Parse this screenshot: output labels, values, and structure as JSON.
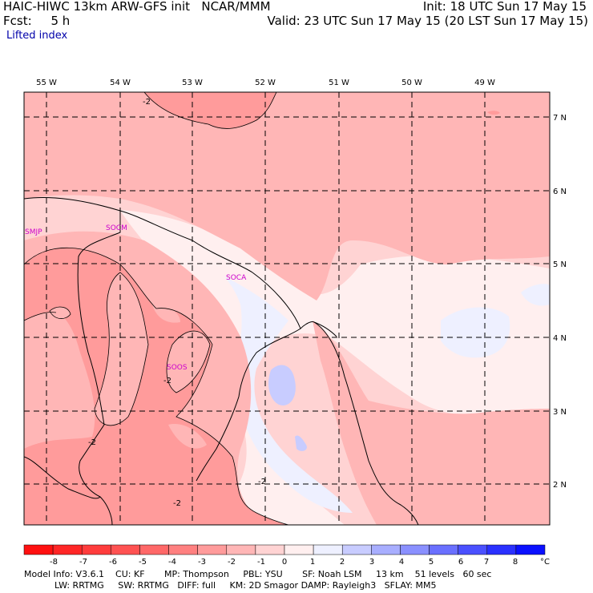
{
  "header": {
    "title": "HAIC-HIWC 13km ARW-GFS init   NCAR/MMM",
    "forecast": "Fcst:     5 h",
    "init": "Init: 18 UTC Sun 17 May 15",
    "valid": "Valid: 23 UTC Sun 17 May 15 (20 LST Sun 17 May 15)",
    "field_name": "Lifted index"
  },
  "axes": {
    "longitude_labels": [
      "55 W",
      "54 W",
      "53 W",
      "52 W",
      "51 W",
      "50 W",
      "49 W"
    ],
    "latitude_labels": [
      "7 N",
      "6 N",
      "5 N",
      "4 N",
      "3 N",
      "2 N"
    ]
  },
  "stations": [
    "SMJP",
    "SOCM",
    "SOCA",
    "SOOS"
  ],
  "contour_labels": [
    "-2",
    "-2",
    "-2",
    "-2",
    "-2"
  ],
  "colorbar": {
    "ticks": [
      "-8",
      "-7",
      "-6",
      "-5",
      "-4",
      "-3",
      "-2",
      "-1",
      "0",
      "1",
      "2",
      "3",
      "4",
      "5",
      "6",
      "7",
      "8"
    ],
    "unit": "°C",
    "colors": [
      "#ff1010",
      "#ff2626",
      "#ff3c3c",
      "#ff5252",
      "#ff6868",
      "#ff8080",
      "#ff9b9b",
      "#ffb6b6",
      "#ffd3d3",
      "#ffefef",
      "#eef0ff",
      "#c8ccff",
      "#a8aeff",
      "#8a90ff",
      "#6a70ff",
      "#4a50ff",
      "#2a30ff",
      "#0a10ff"
    ]
  },
  "footer": {
    "line1": "Model Info: V3.6.1    CU: KF       MP: Thompson     PBL: YSU       SF: Noah LSM     13 km    51 levels   60 sec",
    "line2": "LW: RRTMG     SW: RRTMG   DIFF: full     KM: 2D Smagor DAMP: Rayleigh3   SFLAY: MM5"
  }
}
